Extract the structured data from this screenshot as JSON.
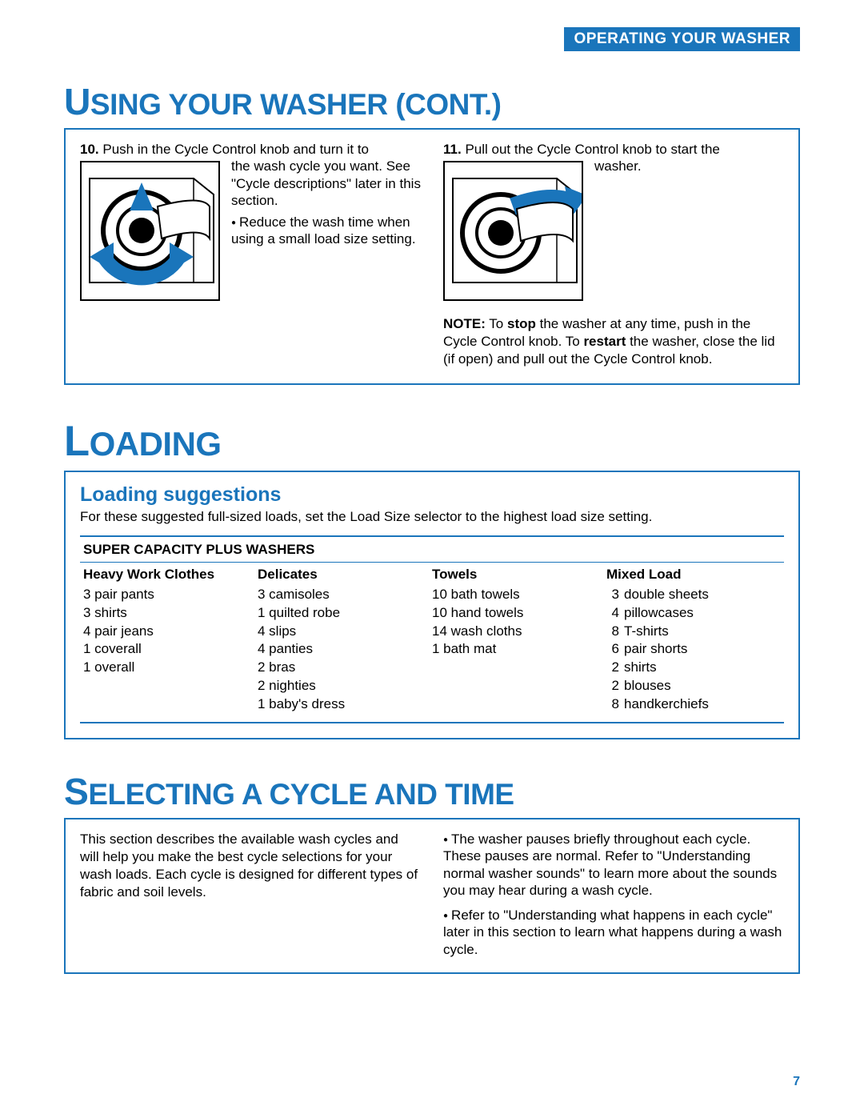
{
  "header": {
    "label": "OPERATING YOUR WASHER"
  },
  "section1": {
    "title_first": "U",
    "title_rest": "SING YOUR WASHER (CONT.)",
    "step10": {
      "num": "10.",
      "lead": "Push in the Cycle Control knob and turn it to",
      "body": "the wash cycle you want. See \"Cycle descriptions\" later in this section.",
      "bullet": "Reduce the wash time when using a small load size setting."
    },
    "step11": {
      "num": "11.",
      "lead": "Pull out the Cycle Control knob to start the",
      "body": "washer."
    },
    "note_label": "NOTE:",
    "note_body": " To stop the washer at any time, push in the Cycle Control knob. To restart the washer, close the lid (if open) and pull out the Cycle Control knob.",
    "note_bold1": "stop",
    "note_bold2": "restart"
  },
  "section2": {
    "title_first": "L",
    "title_rest": "OADING",
    "subheading": "Loading suggestions",
    "intro": "For these suggested full-sized loads, set the Load Size selector to the highest load size setting.",
    "table_title": "SUPER CAPACITY PLUS WASHERS",
    "columns": [
      {
        "header": "Heavy Work Clothes",
        "items": "3 pair pants\n3 shirts\n4 pair jeans\n1 coverall\n1 overall"
      },
      {
        "header": "Delicates",
        "items": "3 camisoles\n1 quilted robe\n4 slips\n4 panties\n2 bras\n2 nighties\n1 baby's dress"
      },
      {
        "header": "Towels",
        "items": "10 bath towels\n10 hand towels\n14 wash cloths\n  1 bath mat"
      },
      {
        "header": "Mixed Load",
        "mixed": [
          [
            "3",
            "double sheets"
          ],
          [
            "4",
            "pillowcases"
          ],
          [
            "8",
            "T-shirts"
          ],
          [
            "6",
            "pair shorts"
          ],
          [
            "2",
            "shirts"
          ],
          [
            "2",
            "blouses"
          ],
          [
            "8",
            "handkerchiefs"
          ]
        ]
      }
    ]
  },
  "section3": {
    "title_first": "S",
    "title_rest": "ELECTING A CYCLE AND TIME",
    "left": "This section describes the available wash cycles and will help you make the best cycle selections for your wash loads. Each cycle is designed for different types of fabric and soil levels.",
    "bullet1": "The washer pauses briefly throughout each cycle. These pauses are normal. Refer to \"Understanding normal washer sounds\" to learn more about the sounds you may hear during a wash cycle.",
    "bullet2": "Refer to \"Understanding what happens in each cycle\" later in this section to learn what happens during a wash cycle."
  },
  "colors": {
    "accent": "#1a75bb",
    "text": "#000000",
    "bg": "#ffffff"
  },
  "page_number": "7"
}
